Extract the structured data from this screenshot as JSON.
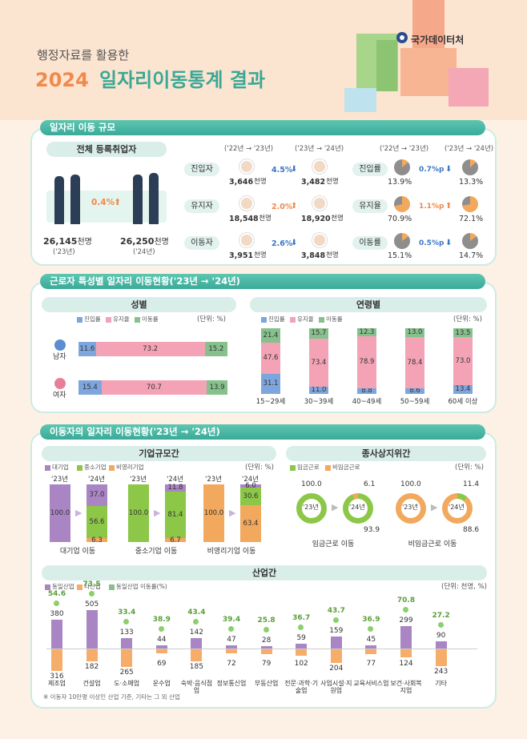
{
  "header": {
    "subtitle": "행정자료를 활용한",
    "title_year": "2024",
    "title_text": "일자리이동통계 결과",
    "logo_text": "국가데이터처"
  },
  "sec1": {
    "title": "일자리 이동 규모",
    "reg_title": "전체 등록취업자",
    "reg": {
      "change": "0.4%",
      "v1": "26,145",
      "v1_unit": "천명",
      "v1_year": "('23년)",
      "v2": "26,250",
      "v2_unit": "천명",
      "v2_year": "('24년)"
    },
    "periods": [
      "('22년 → '23년)",
      "('23년 → '24년)",
      "('22년 → '23년)",
      "('23년 → '24년)"
    ],
    "rows": [
      {
        "label": "진입자",
        "a": "3,646",
        "b": "3,482",
        "unit": "천명",
        "chg": "4.5%",
        "dir": "down",
        "rlabel": "진입률",
        "ra": "13.9%",
        "rb": "13.3%",
        "rchg": "0.7%p",
        "rdir": "down",
        "pa": 13.9,
        "pb": 13.3
      },
      {
        "label": "유지자",
        "a": "18,548",
        "b": "18,920",
        "unit": "천명",
        "chg": "2.0%",
        "dir": "up",
        "rlabel": "유지율",
        "ra": "70.9%",
        "rb": "72.1%",
        "rchg": "1.1%p",
        "rdir": "up",
        "pa": 70.9,
        "pb": 72.1
      },
      {
        "label": "이동자",
        "a": "3,951",
        "b": "3,848",
        "unit": "천명",
        "chg": "2.6%",
        "dir": "down",
        "rlabel": "이동률",
        "ra": "15.1%",
        "rb": "14.7%",
        "rchg": "0.5%p",
        "rdir": "down",
        "pa": 15.1,
        "pb": 14.7
      }
    ]
  },
  "sec2": {
    "title": "근로자 특성별 일자리 이동현황('23년 → '24년)",
    "gender_title": "성별",
    "age_title": "연령별",
    "legend": [
      "진입률",
      "유지율",
      "이동률"
    ],
    "unit": "(단위: %)"
  },
  "sec3": {
    "title": "이동자의 일자리 이동현황('23년 → '24년)",
    "size_title": "기업규모간",
    "size_legend": [
      "대기업",
      "중소기업",
      "비영리기업"
    ],
    "size_unit": "(단위: %)",
    "status_title": "종사상지위간",
    "status_legend": [
      "임금근로",
      "비임금근로"
    ],
    "status_unit": "(단위: %)",
    "industry_title": "산업간",
    "industry_legend": [
      "동일산업",
      "타산업",
      "동일산업 이동률(%)"
    ],
    "industry_unit": "(단위: 천명, %)",
    "footnote": "※ 이동자 10만명 이상인 산업 기준, 기타는 그 외 산업"
  },
  "colors": {
    "teal": "#46b3a1",
    "entry": "#7ea6dc",
    "keep": "#f4a3b6",
    "move": "#86c08c",
    "big": "#a985c4",
    "sme": "#8cc748",
    "np": "#f2a85d",
    "same": "#a985c4",
    "other": "#f6ad6a"
  },
  "chart_data": [
    {
      "type": "bar",
      "title": "성별",
      "categories": [
        "남자",
        "여자"
      ],
      "series": [
        {
          "name": "진입률",
          "values": [
            11.6,
            15.4
          ]
        },
        {
          "name": "유지율",
          "values": [
            73.2,
            70.7
          ]
        },
        {
          "name": "이동률",
          "values": [
            15.2,
            13.9
          ]
        }
      ]
    },
    {
      "type": "bar",
      "title": "연령별",
      "categories": [
        "15~29세",
        "30~39세",
        "40~49세",
        "50~59세",
        "60세 이상"
      ],
      "series": [
        {
          "name": "진입률",
          "values": [
            31.1,
            11.0,
            8.8,
            8.6,
            13.4
          ]
        },
        {
          "name": "유지율",
          "values": [
            47.6,
            73.4,
            78.9,
            78.4,
            73.0
          ]
        },
        {
          "name": "이동률",
          "values": [
            21.4,
            15.7,
            12.3,
            13.0,
            13.5
          ]
        }
      ]
    },
    {
      "type": "bar",
      "title": "기업규모간",
      "categories": [
        "대기업 이동",
        "중소기업 이동",
        "비영리기업 이동"
      ],
      "years": [
        "'23년",
        "'24년"
      ],
      "base": [
        100.0,
        100.0,
        100.0
      ],
      "series": [
        {
          "name": "대기업",
          "values": [
            37.0,
            11.8,
            6.0
          ]
        },
        {
          "name": "중소기업",
          "values": [
            56.6,
            81.4,
            30.6
          ]
        },
        {
          "name": "비영리기업",
          "values": [
            6.3,
            6.7,
            63.4
          ]
        }
      ]
    },
    {
      "type": "pie",
      "title": "종사상지위간",
      "categories": [
        "임금근로 이동",
        "비임금근로 이동"
      ],
      "year_labels": [
        "'23년",
        "'24년"
      ],
      "base": [
        100.0,
        100.0
      ],
      "series": [
        {
          "name": "임금근로",
          "values": [
            93.9,
            11.4
          ]
        },
        {
          "name": "비임금근로",
          "values": [
            6.1,
            88.6
          ]
        }
      ]
    },
    {
      "type": "bar",
      "title": "산업간",
      "categories": [
        "제조업",
        "건설업",
        "도·소매업",
        "운수업",
        "숙박·음식점업",
        "정보통신업",
        "부동산업",
        "전문·과학·기술업",
        "사업시설·지원업",
        "교육서비스업",
        "보건·사회복지업",
        "기타"
      ],
      "series": [
        {
          "name": "동일산업",
          "values": [
            380,
            505,
            133,
            44,
            142,
            47,
            28,
            59,
            159,
            45,
            299,
            90
          ]
        },
        {
          "name": "타산업",
          "values": [
            316,
            182,
            265,
            69,
            185,
            72,
            79,
            102,
            204,
            77,
            124,
            243
          ]
        },
        {
          "name": "동일산업 이동률(%)",
          "values": [
            54.6,
            73.5,
            33.4,
            38.9,
            43.4,
            39.4,
            25.8,
            36.7,
            43.7,
            36.9,
            70.8,
            27.2
          ]
        }
      ]
    }
  ]
}
